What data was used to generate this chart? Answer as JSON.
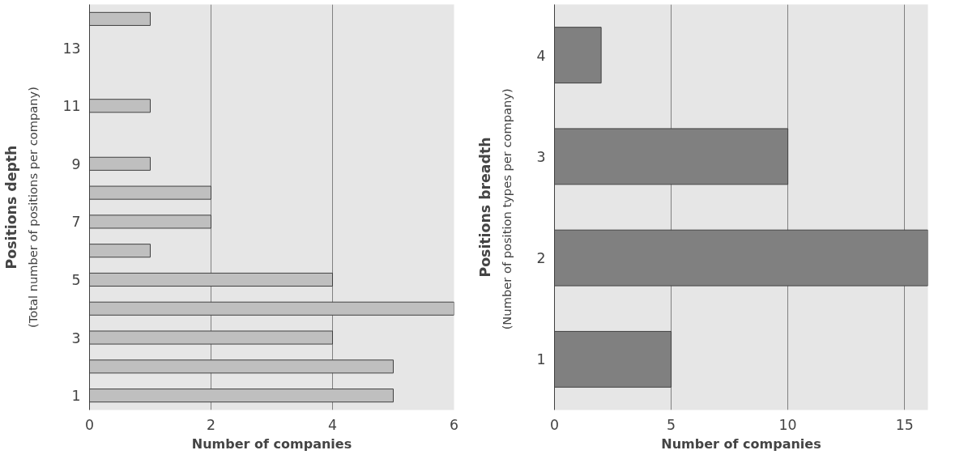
{
  "chart_data": [
    {
      "type": "bar",
      "orientation": "horizontal",
      "ylabel": "Positions depth",
      "annotations": [
        "(Total number of positions per company)"
      ],
      "xlabel": "Number of companies",
      "categories": [
        null,
        "13",
        null,
        "11",
        null,
        "9",
        null,
        "7",
        null,
        "5",
        null,
        "3",
        null,
        "1"
      ],
      "values": [
        1,
        0,
        0,
        1,
        0,
        1,
        2,
        2,
        1,
        4,
        6,
        4,
        5,
        5
      ],
      "color": "#bfbfbf",
      "xlim": [
        0,
        6
      ],
      "xticks": [
        0,
        2,
        4,
        6
      ],
      "grid": "x"
    },
    {
      "type": "bar",
      "orientation": "horizontal",
      "ylabel": "Positions breadth",
      "annotations": [
        "(Number of  position types per company)"
      ],
      "xlabel": "Number of companies",
      "categories": [
        "4",
        "3",
        "2",
        "1"
      ],
      "values": [
        2,
        10,
        16,
        5
      ],
      "color": "#808080",
      "xlim": [
        0,
        16
      ],
      "xticks": [
        0,
        5,
        10,
        15
      ],
      "grid": "x"
    }
  ]
}
